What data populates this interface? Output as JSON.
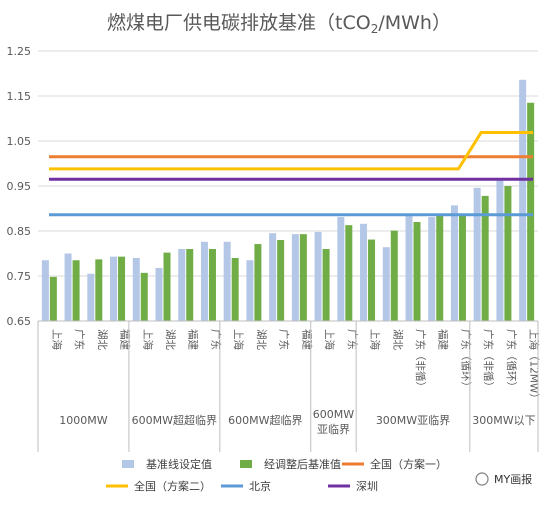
{
  "chart_data": {
    "type": "bar",
    "title_main": "燃煤电厂供电碳排放基准（tCO",
    "title_sub": "2",
    "title_tail": "/MWh）",
    "ylim": [
      0.65,
      1.25
    ],
    "yticks": [
      "0.65",
      "0.75",
      "0.85",
      "0.95",
      "1.05",
      "1.15",
      "1.25"
    ],
    "grid": true,
    "categories": [
      "上海",
      "广东",
      "湖北",
      "福建",
      "上海",
      "湖北",
      "福建",
      "广东",
      "上海",
      "湖北",
      "广东",
      "福建",
      "上海",
      "广东",
      "上海",
      "湖北",
      "广东（非循）",
      "福建",
      "广东（循环）",
      "广东（非循）",
      "广东（循环）",
      "上海（12MW）"
    ],
    "groups": [
      {
        "label": "1000MW",
        "start": 0,
        "end": 3
      },
      {
        "label": "600MW超超临界",
        "start": 4,
        "end": 7
      },
      {
        "label": "600MW超临界",
        "start": 8,
        "end": 11
      },
      {
        "label": "600MW\n亚临界",
        "start": 12,
        "end": 13
      },
      {
        "label": "300MW亚临界",
        "start": 14,
        "end": 18
      },
      {
        "label": "300MW以下",
        "start": 19,
        "end": 21
      }
    ],
    "series": [
      {
        "name": "基准线设定值",
        "color": "#b4c7e7",
        "values": [
          0.785,
          0.8,
          0.755,
          0.793,
          0.79,
          0.768,
          0.81,
          0.826,
          0.826,
          0.785,
          0.845,
          0.843,
          0.848,
          0.881,
          0.866,
          0.814,
          0.885,
          0.881,
          0.907,
          0.946,
          0.963,
          1.186
        ]
      },
      {
        "name": "经调整后基准值",
        "color": "#70ad47",
        "values": [
          0.748,
          0.785,
          0.787,
          0.793,
          0.757,
          0.802,
          0.81,
          0.81,
          0.79,
          0.821,
          0.83,
          0.843,
          0.81,
          0.863,
          0.831,
          0.851,
          0.87,
          0.885,
          0.885,
          0.928,
          0.95,
          1.135
        ]
      }
    ],
    "reference_lines": [
      {
        "name": "全国（方案一）",
        "color": "#ed7d31",
        "values": [
          1.015
        ]
      },
      {
        "name": "全国（方案二）",
        "color": "#ffc000",
        "values": [
          0.988,
          0.988,
          0.988,
          0.988,
          0.988,
          0.988,
          0.988,
          0.988,
          0.988,
          0.988,
          0.988,
          0.988,
          0.988,
          0.988,
          0.988,
          0.988,
          0.988,
          0.988,
          0.988,
          1.069,
          1.069,
          1.069
        ]
      },
      {
        "name": "北京",
        "color": "#5b9bd5",
        "values": [
          0.886
        ]
      },
      {
        "name": "深圳",
        "color": "#7030a0",
        "values": [
          0.965
        ]
      }
    ],
    "legend_position": "bottom"
  },
  "watermark": "MY画报"
}
